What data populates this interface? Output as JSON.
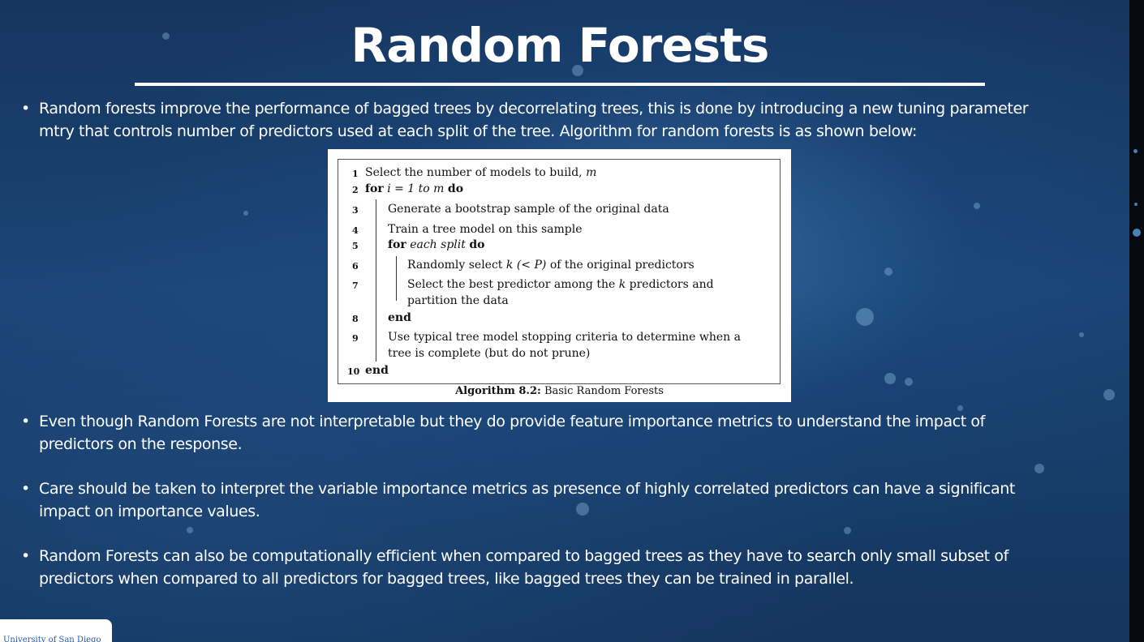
{
  "title": "Random Forests",
  "bullets": [
    {
      "lines": [
        "Random forests improve the performance of bagged trees by decorrelating trees, this is done by introducing a new tuning parameter",
        "mtry that controls number of predictors used at each split of the tree. Algorithm for random forests is as shown below:"
      ]
    },
    {
      "lines": [
        "Even though Random Forests are not interpretable but they do provide feature importance metrics to understand the impact of",
        "predictors on the response."
      ]
    },
    {
      "lines": [
        "Care should be taken to interpret the variable importance metrics as presence of highly correlated predictors can have a significant",
        "impact on importance values."
      ]
    },
    {
      "lines": [
        "Random Forests can also be computationally efficient when compared to bagged trees as they have to search only small subset of",
        "predictors when compared to all predictors for bagged trees, like bagged trees they can be trained in parallel."
      ]
    }
  ],
  "bullet_symbol": "•",
  "algorithm": {
    "line1_num": "1",
    "line1_text": "Select the number of models to build,",
    "line1_var": "m",
    "line2_num": "2",
    "line2_kw_for": "for",
    "line2_math": "i = 1 to m",
    "line2_kw_do": "do",
    "line3_num": "3",
    "line3_text": "Generate a bootstrap sample of the original data",
    "line4_num": "4",
    "line4_text": "Train a tree model on this sample",
    "line5_num": "5",
    "line5_kw_for": "for",
    "line5_it": "each split",
    "line5_kw_do": "do",
    "line6_num": "6",
    "line6_text_a": "Randomly select",
    "line6_math": "k (< P)",
    "line6_text_b": "of the original predictors",
    "line7_num": "7",
    "line7_text_a": "Select the best predictor among the",
    "line7_var": "k",
    "line7_text_b": "predictors and",
    "line7_cont": "partition the data",
    "line8_num": "8",
    "line8_kw": "end",
    "line9_num": "9",
    "line9_text": "Use typical tree model stopping criteria to determine when a",
    "line9_cont": "tree is complete (but do not prune)",
    "line10_num": "10",
    "line10_kw": "end",
    "caption_bold": "Algorithm 8.2:",
    "caption_text": "Basic Random Forests"
  },
  "logo_text": "University of San Diego"
}
